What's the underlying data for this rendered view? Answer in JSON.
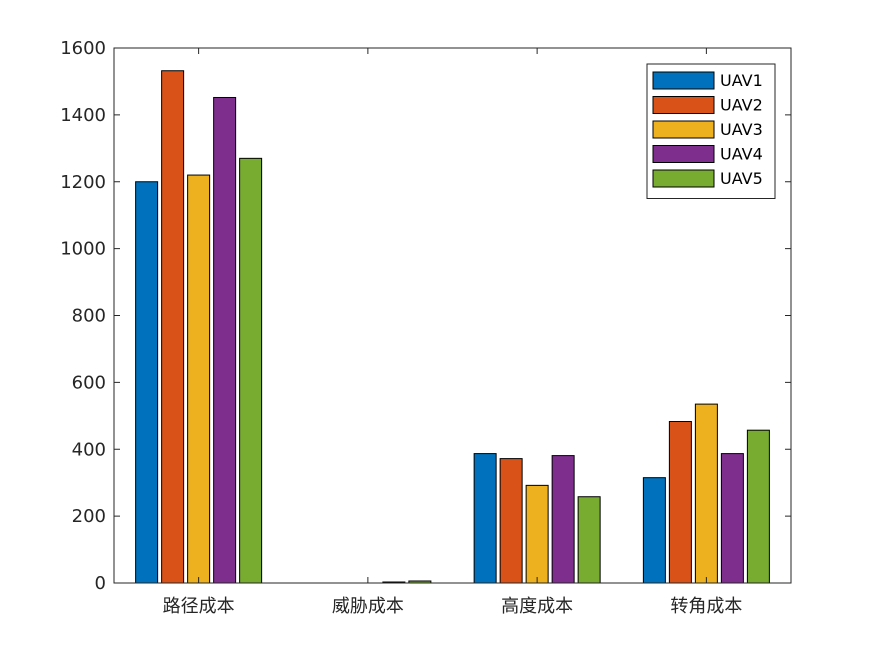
{
  "chart_data": {
    "type": "bar",
    "categories": [
      "路径成本",
      "威胁成本",
      "高度成本",
      "转角成本"
    ],
    "series": [
      {
        "name": "UAV1",
        "color": "#0072BD",
        "values": [
          1200,
          0,
          387,
          315
        ]
      },
      {
        "name": "UAV2",
        "color": "#D95319",
        "values": [
          1532,
          0,
          372,
          483
        ]
      },
      {
        "name": "UAV3",
        "color": "#EDB120",
        "values": [
          1220,
          0,
          292,
          535
        ]
      },
      {
        "name": "UAV4",
        "color": "#7E2F8E",
        "values": [
          1452,
          3,
          381,
          387
        ]
      },
      {
        "name": "UAV5",
        "color": "#77AC30",
        "values": [
          1270,
          6,
          258,
          457
        ]
      }
    ],
    "ylim": [
      0,
      1600
    ],
    "yticks": [
      0,
      200,
      400,
      600,
      800,
      1000,
      1200,
      1400,
      1600
    ],
    "legend_position": "top-right",
    "grid": false
  }
}
